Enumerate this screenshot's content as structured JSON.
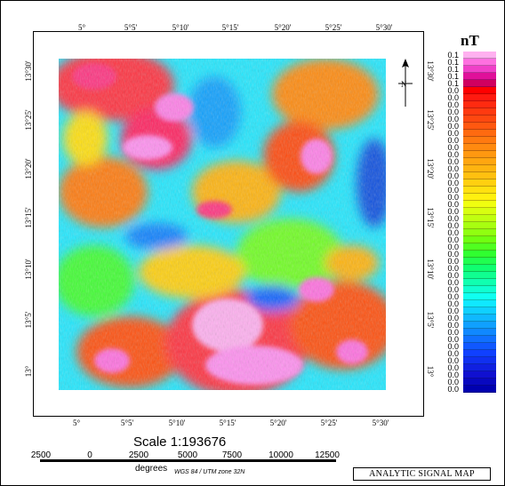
{
  "map": {
    "legend_unit": "nT",
    "legend_values": [
      "0.1",
      "0.1",
      "0.1",
      "0.1",
      "0.1",
      "0.0",
      "0.0",
      "0.0",
      "0.0",
      "0.0",
      "0.0",
      "0.0",
      "0.0",
      "0.0",
      "0.0",
      "0.0",
      "0.0",
      "0.0",
      "0.0",
      "0.0",
      "0.0",
      "0.0",
      "0.0",
      "0.0",
      "0.0",
      "0.0",
      "0.0",
      "0.0",
      "0.0",
      "0.0",
      "0.0",
      "0.0",
      "0.0",
      "0.0",
      "0.0",
      "0.0",
      "0.0",
      "0.0",
      "0.0",
      "0.0",
      "0.0",
      "0.0",
      "0.0",
      "0.0",
      "0.0",
      "0.0",
      "0.0",
      "0.0"
    ],
    "legend_colors": [
      "#ffb0f0",
      "#ff70e0",
      "#f040c8",
      "#e0109a",
      "#d00060",
      "#ff0000",
      "#ff1a10",
      "#ff2a10",
      "#ff3a10",
      "#ff4810",
      "#ff5810",
      "#ff6a10",
      "#ff7a10",
      "#ff8a10",
      "#ff9810",
      "#ffa610",
      "#ffb410",
      "#ffc010",
      "#ffd010",
      "#ffe010",
      "#fff010",
      "#f0ff10",
      "#d8ff10",
      "#c0ff10",
      "#a8ff10",
      "#90ff10",
      "#70ff10",
      "#50ff20",
      "#30ff30",
      "#20ff50",
      "#10ff70",
      "#10ff90",
      "#10ffb0",
      "#10ffd0",
      "#10fff0",
      "#10e8ff",
      "#10d0ff",
      "#10b8ff",
      "#10a0ff",
      "#1088ff",
      "#1070ff",
      "#1058ff",
      "#1040ff",
      "#1030f0",
      "#1020e0",
      "#1010d0",
      "#0808c0",
      "#0000b0"
    ],
    "top_ticks": [
      "5°",
      "5°5'",
      "5°10'",
      "5°15'",
      "5°20'",
      "5°25'",
      "5°30'"
    ],
    "bottom_ticks": [
      "5°",
      "5°5'",
      "5°10'",
      "5°15'",
      "5°20'",
      "5°25'",
      "5°30'"
    ],
    "left_ticks": [
      "13°30'",
      "13°25'",
      "13°20'",
      "13°15'",
      "13°10'",
      "13°5'",
      "13°"
    ],
    "right_ticks": [
      "13°30'",
      "13°25'",
      "13°20'",
      "13°15'",
      "13°10'",
      "13°5'",
      "13°"
    ],
    "scale_text": "Scale 1:193676",
    "scale_numbers": [
      "2500",
      "0",
      "2500",
      "5000",
      "7500",
      "10000",
      "12500"
    ],
    "scale_units": "degrees",
    "projection": "WGS 84 / UTM zone 32N",
    "title": "ANALYTIC SIGNAL MAP"
  }
}
